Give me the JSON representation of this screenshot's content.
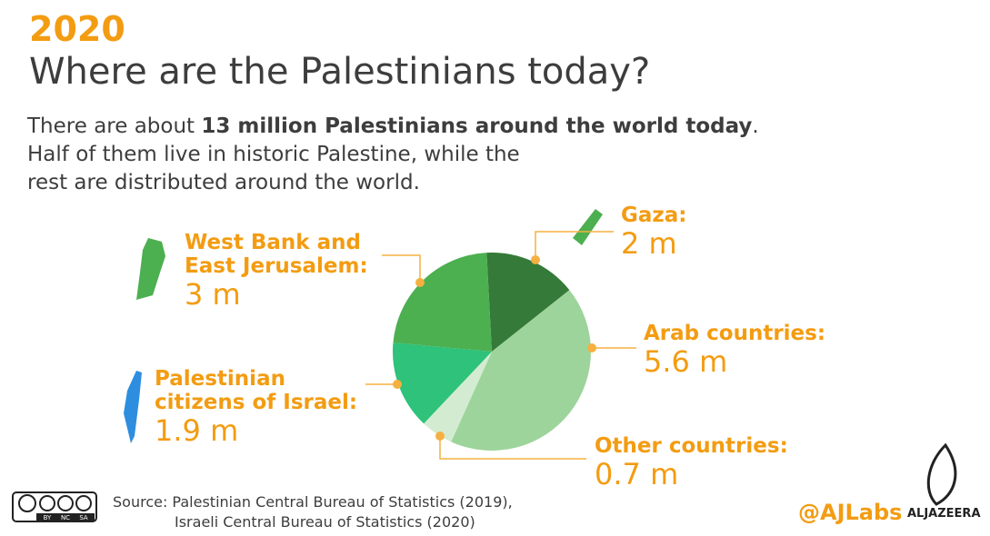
{
  "chart_data": {
    "type": "pie",
    "year": "2020",
    "title": "Where are the Palestinians today?",
    "description": [
      [
        "There are about ",
        "13 million Palestinians around the world today",
        "."
      ],
      [
        "Half of them live in historic Palestine, while the"
      ],
      [
        "rest are distributed around the world."
      ]
    ],
    "categories": [
      "Gaza:",
      "Arab countries:",
      "Other countries:",
      "Palestinian citizens of Israel:",
      "West Bank and East Jerusalem:"
    ],
    "values": [
      2,
      5.6,
      0.7,
      1.9,
      3
    ],
    "value_labels": [
      "2 m",
      "5.6 m",
      "0.7 m",
      "1.9 m",
      "3 m"
    ],
    "colors": [
      "#357a38",
      "#9dd49b",
      "#d3ecd1",
      "#2ec27a",
      "#4caf50"
    ],
    "source": [
      "Source: Palestinian Central Bureau of Statistics (2019),",
      "Israeli Central Bureau of Statistics  (2020)"
    ],
    "license": [
      "BY",
      "NC",
      "SA"
    ],
    "handle": "@AJLabs",
    "brand": "ALJAZEERA"
  }
}
